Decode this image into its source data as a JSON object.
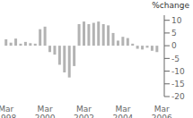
{
  "chart_data": {
    "type": "bar",
    "title": "%change",
    "categories": [
      "Mar 1998",
      null,
      null,
      null,
      null,
      null,
      null,
      null,
      "Mar 2000",
      null,
      null,
      null,
      null,
      null,
      null,
      null,
      "Mar 2002",
      null,
      null,
      null,
      null,
      null,
      null,
      null,
      "Mar 2004",
      null,
      null,
      null,
      null,
      null,
      null,
      null,
      "Mar 2006"
    ],
    "values": [
      2.5,
      1.2,
      2.8,
      0.8,
      1.5,
      1.0,
      0.8,
      6.5,
      7.5,
      -2.5,
      -3.5,
      -7.5,
      -10.5,
      -12.5,
      -8.0,
      8.5,
      9.5,
      8.5,
      9.0,
      9.5,
      8.5,
      8.0,
      5.0,
      2.0,
      3.5,
      3.0,
      0.8,
      -1.2,
      -1.5,
      -0.8,
      -2.0,
      -2.5,
      null
    ],
    "color": "#b3b3b3",
    "ylim": [
      -20,
      12
    ],
    "yticks": [
      10,
      5,
      0,
      -5,
      -10,
      -15,
      -20
    ],
    "grid": false
  }
}
